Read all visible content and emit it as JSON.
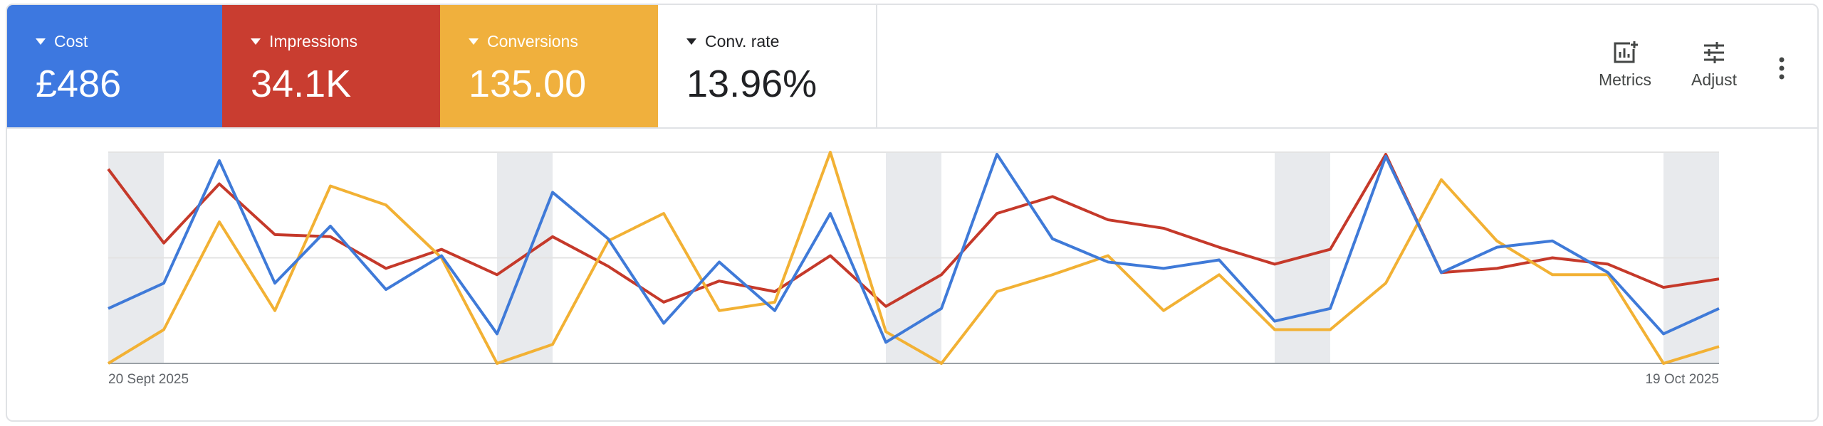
{
  "metrics": [
    {
      "label": "Cost",
      "value": "£486",
      "color": "#3d78e0"
    },
    {
      "label": "Impressions",
      "value": "34.1K",
      "color": "#c93d30"
    },
    {
      "label": "Conversions",
      "value": "135.00",
      "color": "#f0b03d"
    },
    {
      "label": "Conv. rate",
      "value": "13.96%"
    }
  ],
  "toolbar": {
    "metrics": "Metrics",
    "adjust": "Adjust"
  },
  "chart_data": {
    "type": "line",
    "categories": [
      "20 Sept 2025",
      null,
      null,
      null,
      null,
      null,
      null,
      null,
      null,
      null,
      null,
      null,
      null,
      null,
      null,
      null,
      null,
      null,
      null,
      null,
      null,
      null,
      null,
      null,
      null,
      null,
      null,
      null,
      null,
      "19 Oct 2025"
    ],
    "series": [
      {
        "color": "#c5392a",
        "values": [
          92,
          57,
          85,
          61,
          60,
          45,
          54,
          42,
          60,
          46,
          29,
          39,
          34,
          51,
          27,
          42,
          71,
          79,
          68,
          64,
          55,
          47,
          54,
          99,
          43,
          45,
          50,
          47,
          36,
          40
        ]
      },
      {
        "color": "#f2b134",
        "values": [
          0,
          16,
          67,
          25,
          84,
          75,
          50,
          0,
          9,
          58,
          71,
          25,
          29,
          100,
          15,
          0,
          34,
          42,
          51,
          25,
          42,
          16,
          16,
          38,
          87,
          58,
          42,
          42,
          0,
          8
        ]
      },
      {
        "color": "#3f7ad8",
        "values": [
          26,
          38,
          96,
          38,
          65,
          35,
          51,
          14,
          81,
          59,
          19,
          48,
          25,
          71,
          10,
          26,
          99,
          59,
          48,
          45,
          49,
          20,
          26,
          98,
          43,
          55,
          58,
          43,
          14,
          26
        ]
      }
    ],
    "ylim": [
      0,
      100
    ],
    "grid": true
  }
}
